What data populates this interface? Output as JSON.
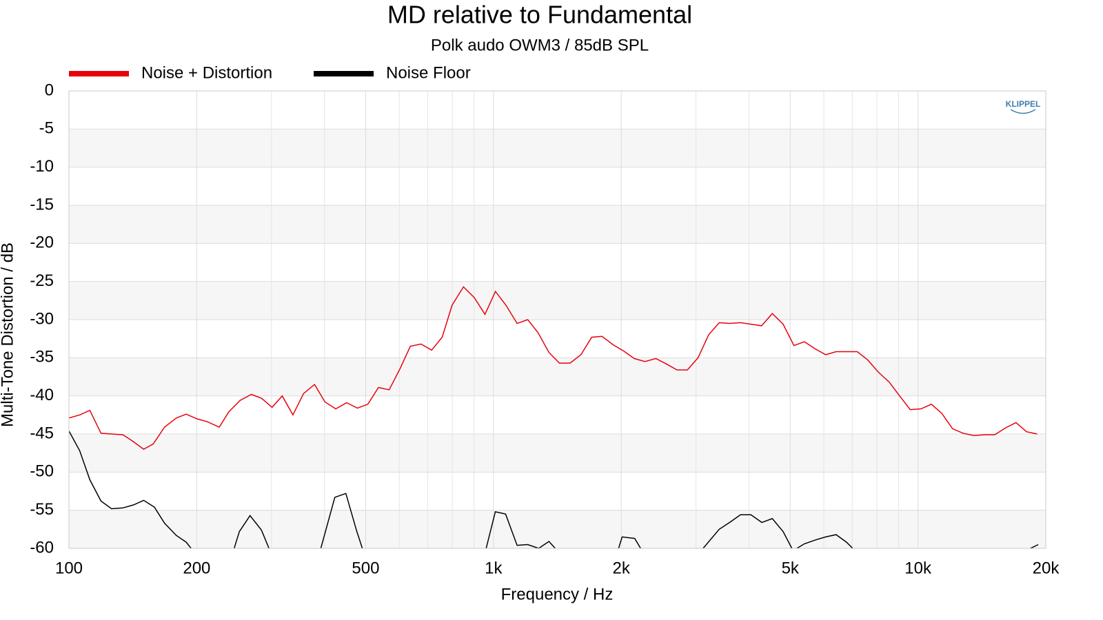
{
  "chart_data": {
    "type": "line",
    "title": "MD relative to Fundamental",
    "subtitle": "Polk audo OWM3 / 85dB SPL",
    "xlabel": "Frequency / Hz",
    "ylabel": "Multi-Tone Distortion / dB",
    "logo": "KLIPPEL",
    "xscale": "log",
    "xlim": [
      100,
      20000
    ],
    "ylim": [
      -60,
      0
    ],
    "xticks": [
      {
        "value": 100,
        "label": "100"
      },
      {
        "value": 200,
        "label": "200"
      },
      {
        "value": 500,
        "label": "500"
      },
      {
        "value": 1000,
        "label": "1k"
      },
      {
        "value": 2000,
        "label": "2k"
      },
      {
        "value": 5000,
        "label": "5k"
      },
      {
        "value": 10000,
        "label": "10k"
      },
      {
        "value": 20000,
        "label": "20k"
      }
    ],
    "xminor_grid": [
      300,
      400,
      600,
      700,
      800,
      900,
      3000,
      4000,
      6000,
      7000,
      8000,
      9000
    ],
    "yticks": [
      0,
      -5,
      -10,
      -15,
      -20,
      -25,
      -30,
      -35,
      -40,
      -45,
      -50,
      -55,
      -60
    ],
    "grid": true,
    "legend": "top-left",
    "series": [
      {
        "name": "Noise + Distortion",
        "color": "#e8000b",
        "x": [
          100,
          106,
          112,
          119,
          134,
          141,
          150,
          158,
          168,
          179,
          189,
          200,
          212,
          226,
          238,
          253,
          269,
          284,
          301,
          318,
          337,
          357,
          379,
          401,
          425,
          451,
          478,
          506,
          536,
          568,
          603,
          637,
          675,
          715,
          757,
          799,
          850,
          901,
          955,
          1011,
          1070,
          1137,
          1204,
          1273,
          1351,
          1430,
          1515,
          1607,
          1704,
          1802,
          1914,
          2025,
          2145,
          2275,
          2413,
          2552,
          2707,
          2863,
          3034,
          3212,
          3403,
          3600,
          3818,
          4041,
          4280,
          4538,
          4812,
          5103,
          5402,
          5716,
          6060,
          6413,
          6787,
          7195,
          7619,
          8072,
          8555,
          9053,
          9584,
          10160,
          10750,
          11380,
          12060,
          12770,
          13530,
          14320,
          15160,
          16080,
          17020,
          18020,
          19090
        ],
        "values": [
          -42.9,
          -42.5,
          -41.9,
          -44.9,
          -45.1,
          -45.9,
          -47.0,
          -46.3,
          -44.1,
          -42.9,
          -42.4,
          -43.0,
          -43.4,
          -44.1,
          -42.1,
          -40.6,
          -39.8,
          -40.3,
          -41.5,
          -40.0,
          -42.5,
          -39.7,
          -38.5,
          -40.8,
          -41.7,
          -40.9,
          -41.6,
          -41.1,
          -38.9,
          -39.2,
          -36.4,
          -33.5,
          -33.2,
          -34.0,
          -32.3,
          -28.1,
          -25.7,
          -27.1,
          -29.3,
          -26.3,
          -28.1,
          -30.5,
          -30.0,
          -31.7,
          -34.3,
          -35.7,
          -35.7,
          -34.6,
          -32.3,
          -32.2,
          -33.3,
          -34.1,
          -35.1,
          -35.5,
          -35.1,
          -35.8,
          -36.6,
          -36.6,
          -35.0,
          -32.0,
          -30.4,
          -30.5,
          -30.4,
          -30.6,
          -30.8,
          -29.2,
          -30.6,
          -33.4,
          -32.9,
          -33.8,
          -34.6,
          -34.2,
          -34.2,
          -34.2,
          -35.3,
          -36.9,
          -38.2,
          -40.0,
          -41.8,
          -41.7,
          -41.1,
          -42.3,
          -44.3,
          -44.9,
          -45.2,
          -45.1,
          -45.1,
          -44.2,
          -43.5,
          -44.7,
          -45.0
        ]
      },
      {
        "name": "Noise Floor",
        "color": "#000000",
        "x": [
          100,
          106,
          112,
          119,
          126,
          134,
          142,
          150,
          159,
          168,
          179,
          189,
          194,
          null,
          245,
          252,
          267,
          284,
          296,
          null,
          392,
          423,
          449,
          476,
          491,
          null,
          961,
          1010,
          1068,
          1137,
          1204,
          1278,
          1351,
          1398,
          null,
          1971,
          2010,
          2151,
          2222,
          null,
          3117,
          3403,
          3600,
          3818,
          4041,
          4287,
          4538,
          4812,
          5047,
          null,
          5184,
          5402,
          5735,
          6060,
          6413,
          6787,
          7018,
          null,
          18400,
          19200
        ],
        "values": [
          -44.6,
          -47.2,
          -51.0,
          -53.8,
          -54.8,
          -54.7,
          -54.3,
          -53.7,
          -54.6,
          -56.7,
          -58.3,
          -59.2,
          -60,
          null,
          -60,
          -57.8,
          -55.7,
          -57.6,
          -60,
          null,
          -60,
          -53.3,
          -52.8,
          -57.7,
          -60,
          null,
          -60,
          -55.2,
          -55.5,
          -59.6,
          -59.5,
          -60,
          -59.1,
          -60,
          null,
          -60,
          -58.5,
          -58.7,
          -60,
          null,
          -60,
          -57.5,
          -56.6,
          -55.6,
          -55.6,
          -56.6,
          -56.1,
          -57.8,
          -60,
          null,
          -60,
          -59.4,
          -58.9,
          -58.5,
          -58.2,
          -59.2,
          -60,
          null,
          -60,
          -59.5
        ]
      }
    ]
  }
}
